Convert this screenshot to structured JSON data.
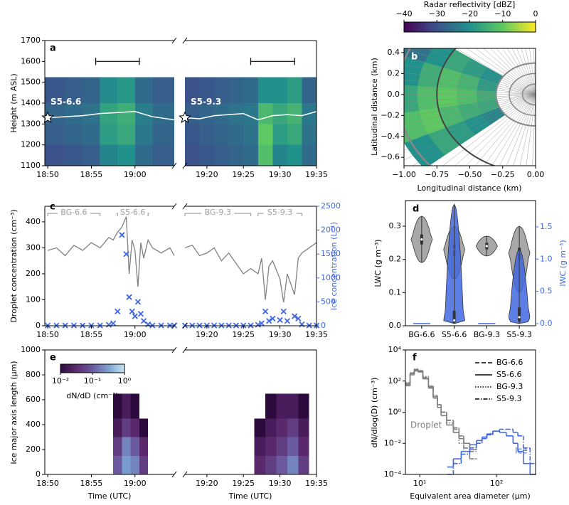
{
  "chart_data": [
    {
      "type": "curtain",
      "label": "a",
      "ylabel": "Height (m ASL)",
      "ylim": [
        1100,
        1700
      ],
      "yticks": [
        1100,
        1200,
        1300,
        1400,
        1500,
        1600,
        1700
      ],
      "height_edges": [
        1100,
        1200,
        1300,
        1400,
        1525
      ],
      "track_color": "#ffffff",
      "colorbar": {
        "title": "Radar reflectivity [dBZ]",
        "lim": [
          -40,
          0
        ],
        "ticks": [
          {
            "value": -40,
            "label": "−40"
          },
          {
            "value": -30,
            "label": "−30"
          },
          {
            "value": -20,
            "label": "−20"
          },
          {
            "value": -10,
            "label": "−10"
          },
          0
        ],
        "colors": [
          "#440154",
          "#3b528b",
          "#21918c",
          "#5ec962",
          "#fde725"
        ]
      },
      "segments": [
        {
          "xlim": [
            "18:49:40",
            "19:04:30"
          ],
          "xticks": [
            "18:50",
            "18:55",
            "19:00"
          ],
          "time_edges": [
            "18:49:40",
            "18:52",
            "18:54",
            "18:56",
            "18:58",
            "19:00",
            "19:02",
            "19:04:30"
          ],
          "z": [
            [
              -30,
              -29,
              -28,
              -22,
              -20,
              -26,
              -28
            ],
            [
              -28,
              -27,
              -26,
              -18,
              -16,
              -24,
              -27
            ],
            [
              -27,
              -26,
              -25,
              -17,
              -15,
              -23,
              -26
            ],
            [
              -29,
              -28,
              -27,
              -21,
              -19,
              -26,
              -28
            ]
          ],
          "track_time": [
            "18:50",
            "18:52",
            "18:54",
            "18:56",
            "18:58",
            "19:00",
            "19:02",
            "19:04:30"
          ],
          "track_height": [
            1330,
            1335,
            1340,
            1350,
            1355,
            1360,
            1335,
            1320
          ],
          "flight": "S5-6.6",
          "bracket": [
            "18:55:30",
            "19:00:30"
          ],
          "bracket_height": 1600
        },
        {
          "xlim": [
            "19:17",
            "19:35"
          ],
          "xticks": [
            "19:20",
            "19:25",
            "19:30",
            "19:35"
          ],
          "time_edges": [
            "19:17",
            "19:19",
            "19:21",
            "19:23",
            "19:25",
            "19:27",
            "19:29",
            "19:31",
            "19:33",
            "19:35"
          ],
          "z": [
            [
              -30,
              -29,
              -28,
              -27,
              -26,
              -12,
              -22,
              -20,
              -26
            ],
            [
              -29,
              -28,
              -27,
              -26,
              -25,
              -10,
              -18,
              -16,
              -25
            ],
            [
              -28,
              -27,
              -26,
              -25,
              -24,
              -13,
              -16,
              -14,
              -24
            ],
            [
              -30,
              -29,
              -28,
              -27,
              -26,
              -20,
              -20,
              -18,
              -27
            ]
          ],
          "track_time": [
            "19:17",
            "19:19",
            "19:21",
            "19:23",
            "19:25",
            "19:27",
            "19:29",
            "19:31",
            "19:33",
            "19:35"
          ],
          "track_height": [
            1330,
            1325,
            1340,
            1345,
            1350,
            1320,
            1340,
            1345,
            1340,
            1360
          ],
          "flight": "S5-9.3",
          "bracket": [
            "19:26",
            "19:32"
          ],
          "bracket_height": 1600
        }
      ]
    },
    {
      "type": "ppi",
      "label": "b",
      "xlabel": "Longitudinal distance (km)",
      "ylabel": "Latitudinal distance (km)",
      "xlim": [
        -1.0,
        0.0
      ],
      "ylim": [
        -0.68,
        0.44
      ],
      "xticks": [
        {
          "value": -1.0,
          "label": "−1.00"
        },
        {
          "value": -0.75,
          "label": "−0.75"
        },
        {
          "value": -0.5,
          "label": "−0.50"
        },
        {
          "value": -0.25,
          "label": "−0.25"
        },
        {
          "value": 0,
          "label": "0.00"
        }
      ],
      "yticks": [
        {
          "value": -0.6,
          "label": "−0.6"
        },
        {
          "value": -0.4,
          "label": "−0.4"
        },
        {
          "value": -0.2,
          "label": "−0.2"
        },
        {
          "value": 0,
          "label": "0.0"
        },
        0.2,
        0.4
      ],
      "range_edges": [
        0.3,
        0.45,
        0.6,
        0.75,
        0.9,
        1.1
      ],
      "azimuth_edges": [
        145,
        160,
        175,
        190,
        205,
        220
      ],
      "z": [
        [
          -20,
          -18,
          -15,
          -16,
          -22
        ],
        [
          -18,
          -14,
          -12,
          -15,
          -20
        ],
        [
          -16,
          -12,
          -10,
          -13,
          -18
        ],
        [
          -20,
          -15,
          -12,
          -10,
          -16
        ],
        [
          -25,
          -20,
          -16,
          -12,
          -20
        ]
      ]
    },
    {
      "type": "timeseries",
      "label": "c",
      "ylabel": "Droplet concentration (cm⁻³)",
      "y2label": "Ice concentration (L⁻¹)",
      "ylim": [
        0,
        460
      ],
      "yticks": [
        0,
        100,
        200,
        300,
        400
      ],
      "y2lim": [
        0,
        2500
      ],
      "y2ticks": [
        0,
        500,
        1000,
        1500,
        2000,
        2500
      ],
      "droplet_color": "#808080",
      "ice_color": "#4169e1",
      "period_color": "#a0a0a0",
      "segments": [
        {
          "xlim": [
            "18:49:40",
            "19:04:30"
          ],
          "xticks": [
            "18:50",
            "18:55",
            "19:00"
          ],
          "time": [
            "18:50",
            "18:51",
            "18:52",
            "18:53",
            "18:54",
            "18:55",
            "18:56",
            "18:57",
            "18:57:30",
            "18:58",
            "18:58:30",
            "18:59",
            "18:59:20",
            "18:59:40",
            "19:00",
            "19:00:20",
            "19:00:40",
            "19:01",
            "19:01:30",
            "19:02",
            "19:03",
            "19:04",
            "19:04:30"
          ],
          "droplet": [
            290,
            300,
            270,
            310,
            290,
            320,
            300,
            340,
            330,
            360,
            380,
            420,
            200,
            330,
            290,
            150,
            320,
            260,
            330,
            300,
            280,
            300,
            270
          ],
          "ice": [
            5,
            5,
            5,
            5,
            5,
            5,
            5,
            20,
            50,
            300,
            1900,
            1500,
            600,
            300,
            200,
            500,
            250,
            100,
            30,
            5,
            5,
            5,
            5
          ],
          "periods": [
            {
              "name": "BG-6.6",
              "start": "18:50",
              "end": "18:56"
            },
            {
              "name": "S5-6.6",
              "start": "18:58",
              "end": "19:01:30"
            }
          ]
        },
        {
          "xlim": [
            "19:17",
            "19:35"
          ],
          "xticks": [
            "19:20",
            "19:25",
            "19:30",
            "19:35"
          ],
          "time": [
            "19:17",
            "19:18",
            "19:19",
            "19:20",
            "19:21",
            "19:22",
            "19:23",
            "19:24",
            "19:25",
            "19:26",
            "19:27",
            "19:27:30",
            "19:28",
            "19:28:30",
            "19:29",
            "19:30",
            "19:30:30",
            "19:31",
            "19:32",
            "19:32:30",
            "19:33",
            "19:34",
            "19:35"
          ],
          "droplet": [
            300,
            310,
            270,
            280,
            300,
            250,
            280,
            240,
            200,
            220,
            200,
            260,
            100,
            230,
            250,
            180,
            90,
            200,
            120,
            260,
            280,
            300,
            320
          ],
          "ice": [
            5,
            5,
            5,
            5,
            5,
            5,
            5,
            5,
            5,
            5,
            20,
            50,
            300,
            100,
            150,
            120,
            300,
            100,
            200,
            150,
            30,
            5,
            5
          ],
          "periods": [
            {
              "name": "BG-9.3",
              "start": "19:17",
              "end": "19:26"
            },
            {
              "name": "S5-9.3",
              "start": "19:27",
              "end": "19:33"
            }
          ]
        }
      ]
    },
    {
      "type": "violin",
      "label": "d",
      "ylabel": "LWC (g m⁻³)",
      "y2label": "IWC (g m⁻³)",
      "categories": [
        "BG-6.6",
        "S5-6.6",
        "BG-9.3",
        "S5-9.3"
      ],
      "ylim": [
        0,
        0.377
      ],
      "yticks": [
        {
          "value": 0,
          "label": "0.0"
        },
        0.1,
        0.2,
        0.3
      ],
      "y2lim": [
        -0.033,
        1.907
      ],
      "y2ticks": [
        {
          "value": 0,
          "label": "0.0"
        },
        0.5,
        {
          "value": 1,
          "label": "1.0"
        },
        1.5
      ],
      "lwc_color": "#999999",
      "iwc_color": "#4169e1",
      "lwc": [
        {
          "min": 0.19,
          "q1": 0.245,
          "median": 0.26,
          "q3": 0.275,
          "max": 0.33
        },
        {
          "min": 0.14,
          "q1": 0.21,
          "median": 0.23,
          "q3": 0.245,
          "max": 0.3
        },
        {
          "min": 0.21,
          "q1": 0.23,
          "median": 0.24,
          "q3": 0.25,
          "max": 0.27
        },
        {
          "min": 0.1,
          "q1": 0.2,
          "median": 0.22,
          "q3": 0.235,
          "max": 0.3
        }
      ],
      "iwc": [
        {
          "min": 0,
          "q1": 0,
          "median": 0,
          "q3": 0,
          "max": 0
        },
        {
          "min": 0,
          "q1": 0.01,
          "median": 0.05,
          "q3": 0.2,
          "max": 1.85
        },
        {
          "min": 0,
          "q1": 0,
          "median": 0,
          "q3": 0,
          "max": 0
        },
        {
          "min": 0,
          "q1": 0.03,
          "median": 0.1,
          "q3": 0.25,
          "max": 1.15
        }
      ]
    },
    {
      "type": "size_time",
      "label": "e",
      "ylabel": "Ice major axis length (μm)",
      "xlabel": "Time (UTC)",
      "ylim": [
        0,
        1000
      ],
      "yticks": [
        0,
        200,
        400,
        600,
        800,
        1000
      ],
      "size_edges": [
        0,
        150,
        300,
        450,
        650
      ],
      "colorbar": {
        "title": "dN/dD (cm⁻³)",
        "lim": [
          0.01,
          1
        ],
        "log": true,
        "ticks": [
          {
            "value": 0.01,
            "label": "10⁻²"
          },
          {
            "value": 0.1,
            "label": "10⁻¹"
          },
          {
            "value": 1,
            "label": "10⁰"
          }
        ],
        "colors": [
          "#2d0a3e",
          "#5b2a6e",
          "#6b5aa0",
          "#7a9fd0",
          "#c6e6f2"
        ]
      },
      "segments": [
        {
          "xlim": [
            "18:49:40",
            "19:04:30"
          ],
          "xticks": [
            "18:50",
            "18:55",
            "19:00"
          ],
          "time_edges": [
            "18:57:30",
            "18:58:30",
            "18:59:30",
            "19:00:30",
            "19:01:30"
          ],
          "z": [
            [
              0.1,
              0.3,
              0.2,
              0.05
            ],
            [
              0.05,
              0.2,
              0.1,
              0.03
            ],
            [
              0.02,
              0.05,
              0.03,
              0.01
            ],
            [
              0.01,
              0.02,
              0.01,
              null
            ]
          ]
        },
        {
          "xlim": [
            "19:17",
            "19:35"
          ],
          "xticks": [
            "19:20",
            "19:25",
            "19:30",
            "19:35"
          ],
          "time_edges": [
            "19:26:30",
            "19:28",
            "19:29:30",
            "19:31",
            "19:32:30",
            "19:34"
          ],
          "z": [
            [
              0.03,
              0.05,
              0.1,
              0.2,
              0.05
            ],
            [
              0.02,
              0.03,
              0.05,
              0.1,
              0.03
            ],
            [
              0.01,
              0.02,
              0.03,
              0.05,
              0.02
            ],
            [
              null,
              0.01,
              0.02,
              0.02,
              0.01
            ]
          ]
        }
      ]
    },
    {
      "type": "step",
      "label": "f",
      "xlabel": "Equivalent area diameter (μm)",
      "ylabel": "dN/dlog(D) (cm⁻³)",
      "log": true,
      "xlim": [
        6.5,
        323
      ],
      "ylim": [
        0.0001,
        10000
      ],
      "xticks": [
        {
          "value": 10,
          "label": "10¹"
        },
        {
          "value": 100,
          "label": "10²"
        }
      ],
      "yticks": [
        {
          "value": 0.0001,
          "label": "10⁻⁴"
        },
        {
          "value": 0.01,
          "label": "10⁻²"
        },
        {
          "value": 1,
          "label": "10⁰"
        },
        {
          "value": 100,
          "label": "10²"
        },
        {
          "value": 10000,
          "label": "10⁴"
        }
      ],
      "droplet_label": "Droplet",
      "ice_label": "Ice",
      "droplet_color": "#808080",
      "ice_color": "#4169e1",
      "droplet_x": [
        7,
        8,
        9,
        10,
        12,
        14,
        16,
        18,
        20,
        25,
        30,
        35,
        40,
        50
      ],
      "ice_x": [
        25,
        30,
        40,
        50,
        60,
        70,
        80,
        100,
        120,
        150,
        180,
        200,
        250,
        300
      ],
      "series": [
        {
          "name": "BG-6.6",
          "dash": "dashed",
          "droplet": [
            60,
            300,
            500,
            400,
            150,
            40,
            10,
            3,
            1,
            0.3,
            0.08,
            0.02,
            0.005,
            0.001
          ]
        },
        {
          "name": "S5-6.6",
          "dash": "solid",
          "droplet": [
            50,
            250,
            450,
            380,
            140,
            35,
            8,
            2,
            0.6,
            0.15,
            0.05,
            0.02,
            0.01,
            0.004
          ],
          "ice": [
            0.0003,
            0.001,
            0.003,
            0.008,
            0.015,
            0.025,
            0.04,
            0.06,
            0.05,
            0.03,
            0.01,
            0.003,
            0.0005,
            0.0001
          ]
        },
        {
          "name": "BG-9.3",
          "dash": "dotted",
          "droplet": [
            80,
            350,
            600,
            500,
            200,
            50,
            12,
            3,
            1,
            0.2,
            0.05,
            0.01,
            0.003,
            0.001
          ]
        },
        {
          "name": "S5-9.3",
          "dash": "dashdot",
          "droplet": [
            70,
            320,
            550,
            450,
            170,
            45,
            10,
            3,
            1,
            0.3,
            0.1,
            0.03,
            0.01,
            0.003
          ],
          "ice": [
            0.0001,
            0.0005,
            0.002,
            0.005,
            0.01,
            0.02,
            0.035,
            0.06,
            0.08,
            0.08,
            0.05,
            0.03,
            0.005,
            0.0005
          ]
        }
      ]
    }
  ]
}
